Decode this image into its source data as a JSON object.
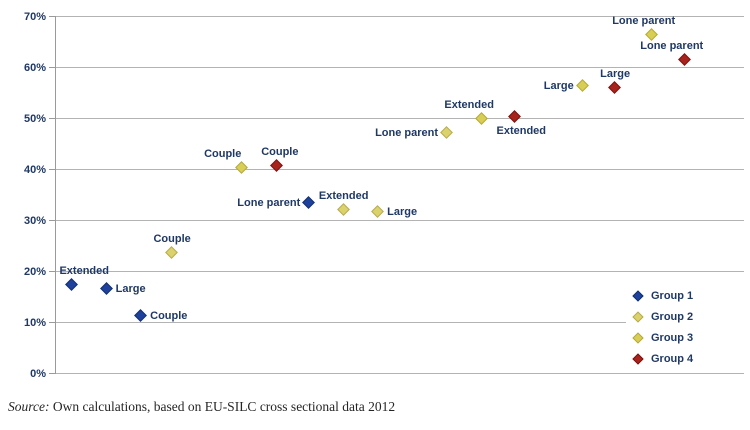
{
  "chart_data": {
    "type": "scatter",
    "title": "",
    "xlabel": "",
    "ylabel": "",
    "ylim": [
      0,
      70
    ],
    "grid": true,
    "marker_shape": "diamond",
    "yticks": [
      {
        "v": 0,
        "label": "0%"
      },
      {
        "v": 10,
        "label": "10%"
      },
      {
        "v": 20,
        "label": "20%"
      },
      {
        "v": 30,
        "label": "30%"
      },
      {
        "v": 40,
        "label": "40%"
      },
      {
        "v": 50,
        "label": "50%"
      },
      {
        "v": 60,
        "label": "60%"
      },
      {
        "v": 70,
        "label": "70%"
      }
    ],
    "legend_position": "bottom-right",
    "series": [
      {
        "name": "Group 1",
        "color": "#1E429B",
        "border_color": "#14306F",
        "points": [
          {
            "label": "Extended",
            "x": 2.5,
            "y": 17.2,
            "label_pos": "above",
            "dx": 12
          },
          {
            "label": "Large",
            "x": 7.5,
            "y": 16.5,
            "label_pos": "right",
            "dx": 0
          },
          {
            "label": "Couple",
            "x": 12.5,
            "y": 11.2,
            "label_pos": "right",
            "dx": 0
          },
          {
            "label": "Lone parent",
            "x": 36.9,
            "y": 33.3,
            "label_pos": "left",
            "dx": 0
          }
        ]
      },
      {
        "name": "Group 2",
        "color": "#DBD26E",
        "border_color": "#B6AC4D",
        "points": [
          {
            "label": "Couple",
            "x": 17.0,
            "y": 23.6,
            "label_pos": "above",
            "dx": 0
          },
          {
            "label": "Extended",
            "x": 41.9,
            "y": 32.0,
            "label_pos": "above",
            "dx": 0
          },
          {
            "label": "Large",
            "x": 46.9,
            "y": 31.5,
            "label_pos": "right",
            "dx": 0
          },
          {
            "label": "Lone parent",
            "x": 56.9,
            "y": 47.1,
            "label_pos": "left",
            "dx": 0
          }
        ]
      },
      {
        "name": "Group 3",
        "color": "#D8CE55",
        "border_color": "#B3A93B",
        "points": [
          {
            "label": "Couple",
            "x": 27.1,
            "y": 40.1,
            "label_pos": "above",
            "dx": -19
          },
          {
            "label": "Extended",
            "x": 62.0,
            "y": 49.9,
            "label_pos": "above",
            "dx": -13
          },
          {
            "label": "Large",
            "x": 76.6,
            "y": 56.3,
            "label_pos": "left",
            "dx": 0
          },
          {
            "label": "Lone parent",
            "x": 86.6,
            "y": 66.2,
            "label_pos": "above",
            "dx": -8
          }
        ]
      },
      {
        "name": "Group 4",
        "color": "#A8231C",
        "border_color": "#791510",
        "points": [
          {
            "label": "Couple",
            "x": 32.2,
            "y": 40.5,
            "label_pos": "above",
            "dx": 3
          },
          {
            "label": "Extended",
            "x": 66.8,
            "y": 50.2,
            "label_pos": "below",
            "dx": 6
          },
          {
            "label": "Large",
            "x": 81.3,
            "y": 55.9,
            "label_pos": "above",
            "dx": 0
          },
          {
            "label": "Lone parent",
            "x": 91.4,
            "y": 61.4,
            "label_pos": "above",
            "dx": -13
          }
        ]
      }
    ]
  },
  "source_note": {
    "prefix": "Source:",
    "text": " Own calculations, based on EU-SILC cross sectional data 2012"
  }
}
